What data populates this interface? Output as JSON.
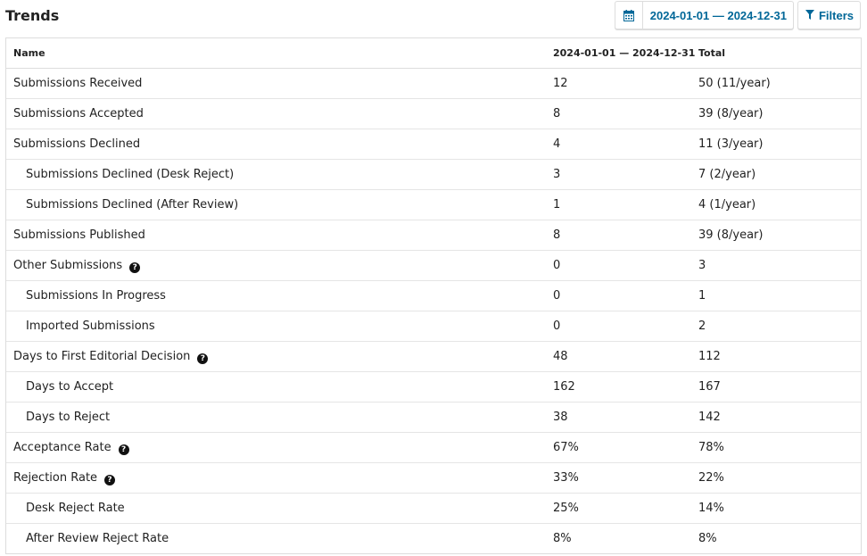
{
  "header": {
    "title": "Trends",
    "date_range_label": "2024-01-01 — 2024-12-31",
    "filters_label": "Filters"
  },
  "table": {
    "columns": [
      "Name",
      "2024-01-01 — 2024-12-31",
      "Total"
    ],
    "rows": [
      {
        "name": "Submissions Received",
        "period": "12",
        "total": "50 (11/year)"
      },
      {
        "name": "Submissions Accepted",
        "period": "8",
        "total": "39 (8/year)"
      },
      {
        "name": "Submissions Declined",
        "period": "4",
        "total": "11 (3/year)"
      },
      {
        "name": "Submissions Declined (Desk Reject)",
        "period": "3",
        "total": "7 (2/year)"
      },
      {
        "name": "Submissions Declined (After Review)",
        "period": "1",
        "total": "4 (1/year)"
      },
      {
        "name": "Submissions Published",
        "period": "8",
        "total": "39 (8/year)"
      },
      {
        "name": "Other Submissions",
        "period": "0",
        "total": "3"
      },
      {
        "name": "Submissions In Progress",
        "period": "0",
        "total": "1"
      },
      {
        "name": "Imported Submissions",
        "period": "0",
        "total": "2"
      },
      {
        "name": "Days to First Editorial Decision",
        "period": "48",
        "total": "112"
      },
      {
        "name": "Days to Accept",
        "period": "162",
        "total": "167"
      },
      {
        "name": "Days to Reject",
        "period": "38",
        "total": "142"
      },
      {
        "name": "Acceptance Rate",
        "period": "67%",
        "total": "78%"
      },
      {
        "name": "Rejection Rate",
        "period": "33%",
        "total": "22%"
      },
      {
        "name": "Desk Reject Rate",
        "period": "25%",
        "total": "14%"
      },
      {
        "name": "After Review Reject Rate",
        "period": "8%",
        "total": "8%"
      }
    ]
  },
  "icons": {
    "calendar": "calendar-icon",
    "filter": "filter-icon",
    "help": "question-circle-icon"
  },
  "colors": {
    "accent": "#006798",
    "border": "#dddddd",
    "text": "#222222"
  }
}
